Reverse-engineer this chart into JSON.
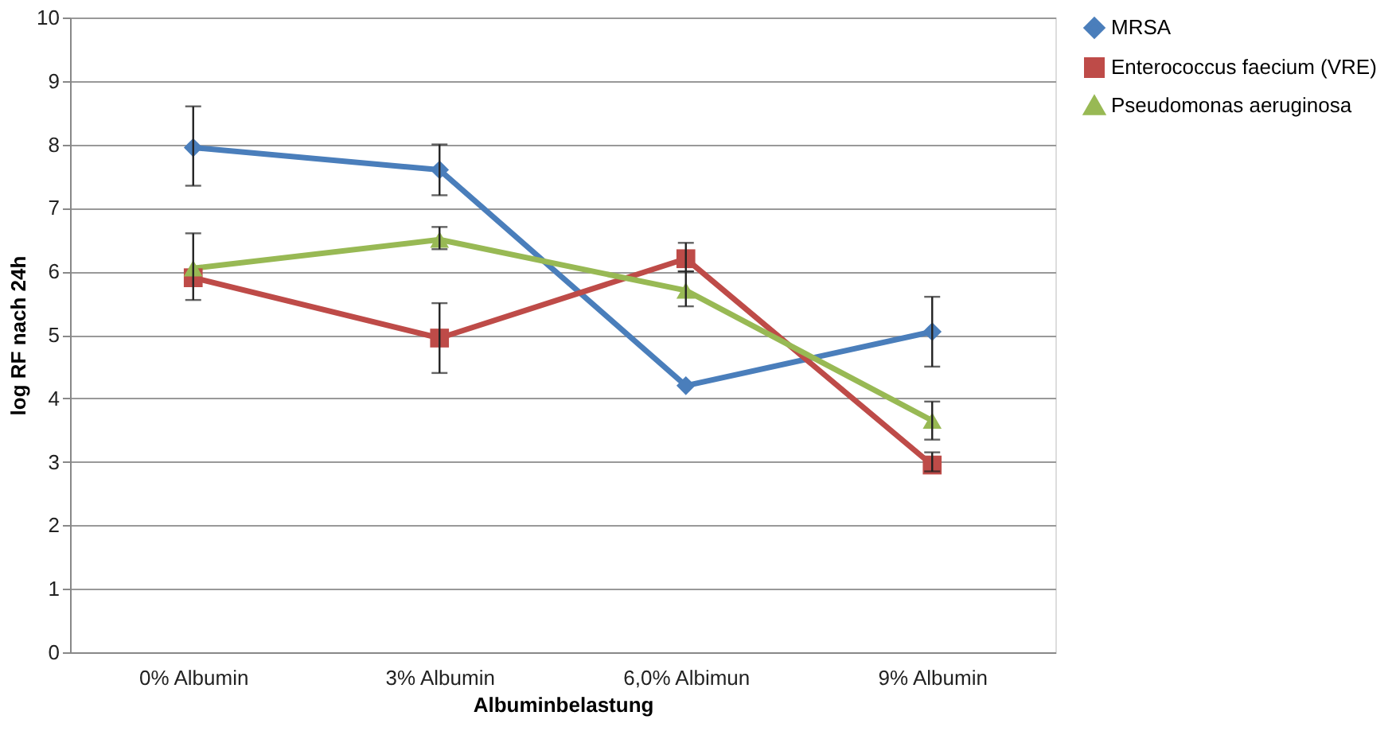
{
  "chart_data": {
    "type": "line",
    "xlabel": "Albuminbelastung",
    "ylabel": "log RF nach 24h",
    "categories": [
      "0% Albumin",
      "3% Albumin",
      "6,0% Albimun",
      "9% Albumin"
    ],
    "series": [
      {
        "name": "MRSA",
        "color": "#4a7ebb",
        "marker": "diamond",
        "values": [
          7.95,
          7.6,
          4.2,
          5.05
        ],
        "errors": [
          [
            7.35,
            8.6
          ],
          [
            7.2,
            8.0
          ],
          null,
          [
            4.5,
            5.6
          ]
        ]
      },
      {
        "name": "Enterococcus faecium (VRE)",
        "color": "#be4b48",
        "marker": "square",
        "values": [
          5.9,
          4.95,
          6.2,
          2.95
        ],
        "errors": [
          null,
          [
            4.4,
            5.5
          ],
          [
            6.0,
            6.45
          ],
          [
            2.85,
            3.15
          ]
        ]
      },
      {
        "name": "Pseudomonas aeruginosa",
        "color": "#98b954",
        "marker": "triangle",
        "values": [
          6.05,
          6.5,
          5.7,
          3.65
        ],
        "errors": [
          [
            5.55,
            6.6
          ],
          [
            6.35,
            6.7
          ],
          [
            5.45,
            6.0
          ],
          [
            3.35,
            3.95
          ]
        ]
      }
    ],
    "ylim": [
      0,
      10
    ],
    "yticks": [
      0,
      1,
      2,
      3,
      4,
      5,
      6,
      7,
      8,
      9,
      10
    ],
    "grid": "y",
    "legend": "right",
    "line_style": "solid"
  }
}
